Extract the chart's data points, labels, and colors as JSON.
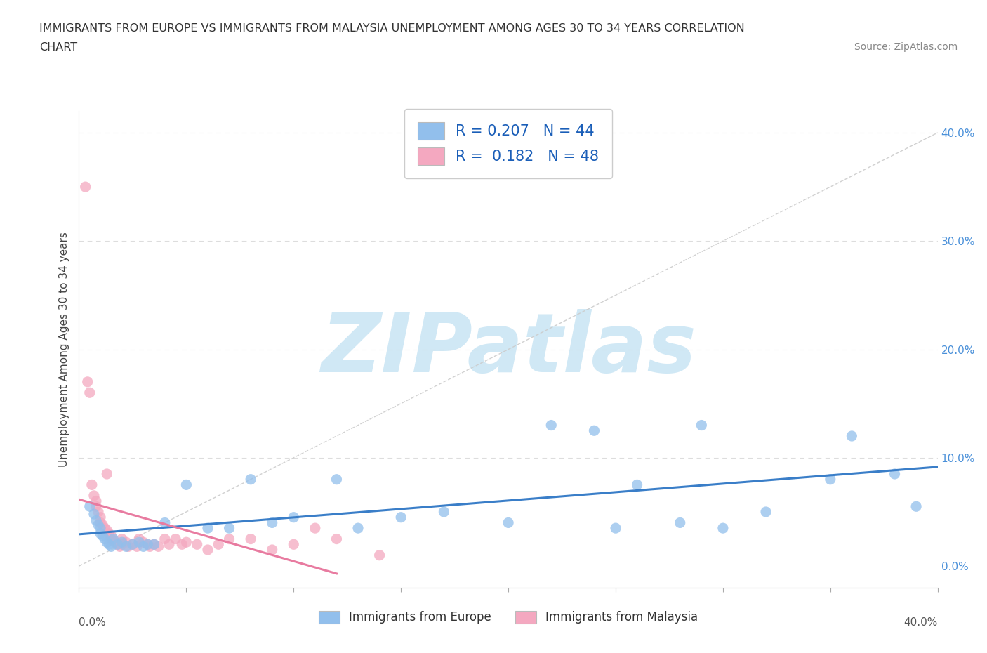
{
  "title_line1": "IMMIGRANTS FROM EUROPE VS IMMIGRANTS FROM MALAYSIA UNEMPLOYMENT AMONG AGES 30 TO 34 YEARS CORRELATION",
  "title_line2": "CHART",
  "source_text": "Source: ZipAtlas.com",
  "ylabel_label": "Unemployment Among Ages 30 to 34 years",
  "xlim": [
    0.0,
    0.4
  ],
  "ylim": [
    -0.02,
    0.42
  ],
  "right_yticks": [
    0.0,
    0.1,
    0.2,
    0.3,
    0.4
  ],
  "right_yticklabels": [
    "0.0%",
    "10.0%",
    "20.0%",
    "30.0%",
    "40.0%"
  ],
  "xaxis_left_label": "0.0%",
  "xaxis_right_label": "40.0%",
  "europe_R": 0.207,
  "europe_N": 44,
  "malaysia_R": 0.182,
  "malaysia_N": 48,
  "europe_color": "#92BFEC",
  "malaysia_color": "#F4A8C0",
  "europe_line_color": "#3A7EC8",
  "malaysia_line_color": "#E87BA0",
  "ref_line_color": "#CCCCCC",
  "watermark_color": "#D0E8F5",
  "legend_text_color": "#1a5eb8",
  "title_color": "#333333",
  "source_color": "#888888",
  "tick_color": "#888888",
  "europe_x": [
    0.005,
    0.007,
    0.008,
    0.009,
    0.01,
    0.01,
    0.011,
    0.012,
    0.013,
    0.014,
    0.015,
    0.016,
    0.018,
    0.02,
    0.022,
    0.025,
    0.028,
    0.03,
    0.032,
    0.035,
    0.04,
    0.05,
    0.06,
    0.07,
    0.08,
    0.09,
    0.1,
    0.12,
    0.13,
    0.15,
    0.17,
    0.2,
    0.22,
    0.24,
    0.25,
    0.26,
    0.28,
    0.29,
    0.3,
    0.32,
    0.35,
    0.36,
    0.38,
    0.39
  ],
  "europe_y": [
    0.055,
    0.048,
    0.042,
    0.038,
    0.035,
    0.03,
    0.028,
    0.025,
    0.022,
    0.02,
    0.018,
    0.025,
    0.02,
    0.022,
    0.018,
    0.02,
    0.022,
    0.018,
    0.02,
    0.02,
    0.04,
    0.075,
    0.035,
    0.035,
    0.08,
    0.04,
    0.045,
    0.08,
    0.035,
    0.045,
    0.05,
    0.04,
    0.13,
    0.125,
    0.035,
    0.075,
    0.04,
    0.13,
    0.035,
    0.05,
    0.08,
    0.12,
    0.085,
    0.055
  ],
  "malaysia_x": [
    0.003,
    0.004,
    0.005,
    0.006,
    0.007,
    0.008,
    0.008,
    0.009,
    0.01,
    0.01,
    0.011,
    0.012,
    0.013,
    0.013,
    0.014,
    0.015,
    0.015,
    0.016,
    0.017,
    0.018,
    0.019,
    0.02,
    0.02,
    0.022,
    0.023,
    0.025,
    0.027,
    0.028,
    0.03,
    0.032,
    0.033,
    0.035,
    0.037,
    0.04,
    0.042,
    0.045,
    0.048,
    0.05,
    0.055,
    0.06,
    0.065,
    0.07,
    0.08,
    0.09,
    0.1,
    0.11,
    0.12,
    0.14
  ],
  "malaysia_y": [
    0.35,
    0.17,
    0.16,
    0.075,
    0.065,
    0.06,
    0.055,
    0.05,
    0.045,
    0.04,
    0.038,
    0.035,
    0.033,
    0.085,
    0.03,
    0.028,
    0.025,
    0.023,
    0.022,
    0.02,
    0.018,
    0.02,
    0.025,
    0.022,
    0.018,
    0.02,
    0.018,
    0.025,
    0.022,
    0.02,
    0.018,
    0.02,
    0.018,
    0.025,
    0.02,
    0.025,
    0.02,
    0.022,
    0.02,
    0.015,
    0.02,
    0.025,
    0.025,
    0.015,
    0.02,
    0.035,
    0.025,
    0.01
  ],
  "malaysia_trend_xrange": [
    0.0,
    0.12
  ],
  "europe_trend_xrange": [
    0.0,
    0.4
  ]
}
